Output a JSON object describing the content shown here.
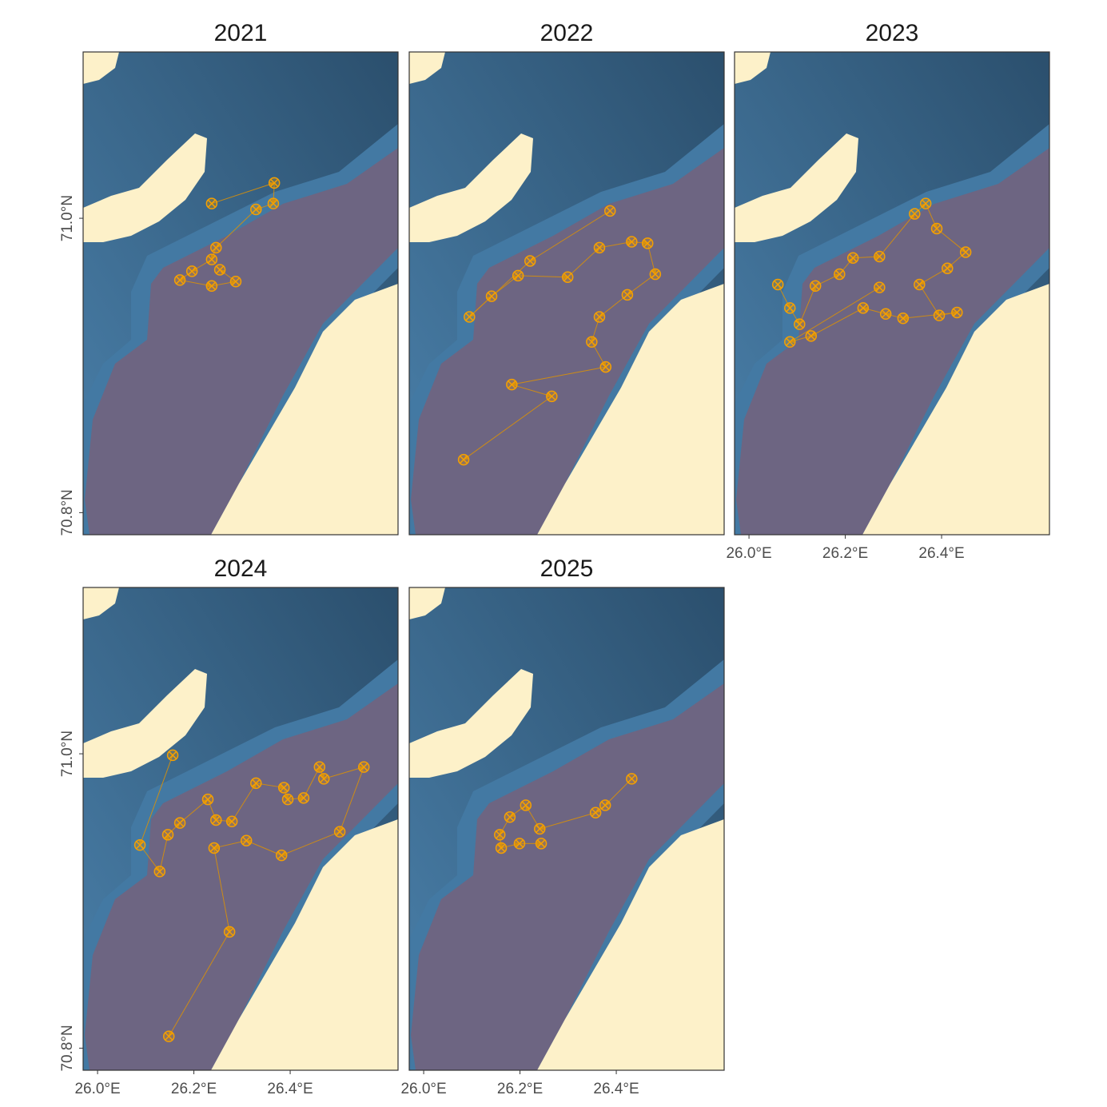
{
  "chart_data": [
    {
      "type": "scatter",
      "title": "2021",
      "color": "#f5a000",
      "x": [
        26.237,
        26.367,
        26.365,
        26.329,
        26.246,
        26.237,
        26.196,
        26.171,
        26.237,
        26.287,
        26.254
      ],
      "y": [
        71.01,
        71.024,
        71.01,
        71.006,
        70.98,
        70.972,
        70.964,
        70.958,
        70.954,
        70.957,
        70.965
      ],
      "xlim": [
        25.97,
        26.624
      ],
      "ylim": [
        70.785,
        71.113
      ],
      "yticks": [
        {
          "value": 70.8,
          "label": "70.8°N"
        },
        {
          "value": 71.0,
          "label": "71.0°N"
        }
      ]
    },
    {
      "type": "scatter",
      "title": "2022",
      "color": "#f5a000",
      "x": [
        26.387,
        26.221,
        26.095,
        26.141,
        26.196,
        26.299,
        26.365,
        26.432,
        26.465,
        26.481,
        26.423,
        26.365,
        26.349,
        26.378,
        26.183,
        26.266,
        26.083
      ],
      "y": [
        71.005,
        70.971,
        70.933,
        70.947,
        70.961,
        70.96,
        70.98,
        70.984,
        70.983,
        70.962,
        70.948,
        70.933,
        70.916,
        70.899,
        70.887,
        70.879,
        70.836
      ],
      "xlim": [
        25.97,
        26.624
      ],
      "ylim": [
        70.785,
        71.113
      ]
    },
    {
      "type": "scatter",
      "title": "2023",
      "color": "#f5a000",
      "x": [
        26.06,
        26.085,
        26.105,
        26.138,
        26.188,
        26.216,
        26.271,
        26.344,
        26.367,
        26.39,
        26.45,
        26.412,
        26.354,
        26.395,
        26.432,
        26.32,
        26.284,
        26.237,
        26.129,
        26.085,
        26.271
      ],
      "y": [
        70.955,
        70.939,
        70.928,
        70.954,
        70.962,
        70.973,
        70.974,
        71.003,
        71.01,
        70.993,
        70.977,
        70.966,
        70.955,
        70.934,
        70.936,
        70.932,
        70.935,
        70.939,
        70.92,
        70.916,
        70.953
      ],
      "xlim": [
        25.97,
        26.624
      ],
      "ylim": [
        70.785,
        71.113
      ],
      "xticks": [
        {
          "value": 26.0,
          "label": "26.0°E"
        },
        {
          "value": 26.2,
          "label": "26.2°E"
        },
        {
          "value": 26.4,
          "label": "26.4°E"
        }
      ]
    },
    {
      "type": "scatter",
      "title": "2024",
      "color": "#f5a000",
      "x": [
        26.156,
        26.088,
        26.129,
        26.146,
        26.171,
        26.229,
        26.246,
        26.279,
        26.329,
        26.387,
        26.395,
        26.428,
        26.461,
        26.47,
        26.553,
        26.503,
        26.382,
        26.309,
        26.242,
        26.274,
        26.148
      ],
      "y": [
        70.999,
        70.938,
        70.92,
        70.945,
        70.953,
        70.969,
        70.955,
        70.954,
        70.98,
        70.977,
        70.969,
        70.97,
        70.991,
        70.983,
        70.991,
        70.947,
        70.931,
        70.941,
        70.936,
        70.879,
        70.808
      ],
      "xlim": [
        25.97,
        26.624
      ],
      "ylim": [
        70.785,
        71.113
      ],
      "xticks": [
        {
          "value": 26.0,
          "label": "26.0°E"
        },
        {
          "value": 26.2,
          "label": "26.2°E"
        },
        {
          "value": 26.4,
          "label": "26.4°E"
        }
      ],
      "yticks": [
        {
          "value": 70.8,
          "label": "70.8°N"
        },
        {
          "value": 71.0,
          "label": "71.0°N"
        }
      ]
    },
    {
      "type": "scatter",
      "title": "2025",
      "color": "#f5a000",
      "x": [
        26.432,
        26.377,
        26.357,
        26.241,
        26.212,
        26.179,
        26.158,
        26.161,
        26.199,
        26.244
      ],
      "y": [
        70.983,
        70.965,
        70.96,
        70.949,
        70.965,
        70.957,
        70.945,
        70.936,
        70.939,
        70.939
      ],
      "xlim": [
        25.97,
        26.624
      ],
      "ylim": [
        70.785,
        71.113
      ],
      "xticks": [
        {
          "value": 26.0,
          "label": "26.0°E"
        },
        {
          "value": 26.2,
          "label": "26.2°E"
        },
        {
          "value": 26.4,
          "label": "26.4°E"
        }
      ]
    }
  ]
}
